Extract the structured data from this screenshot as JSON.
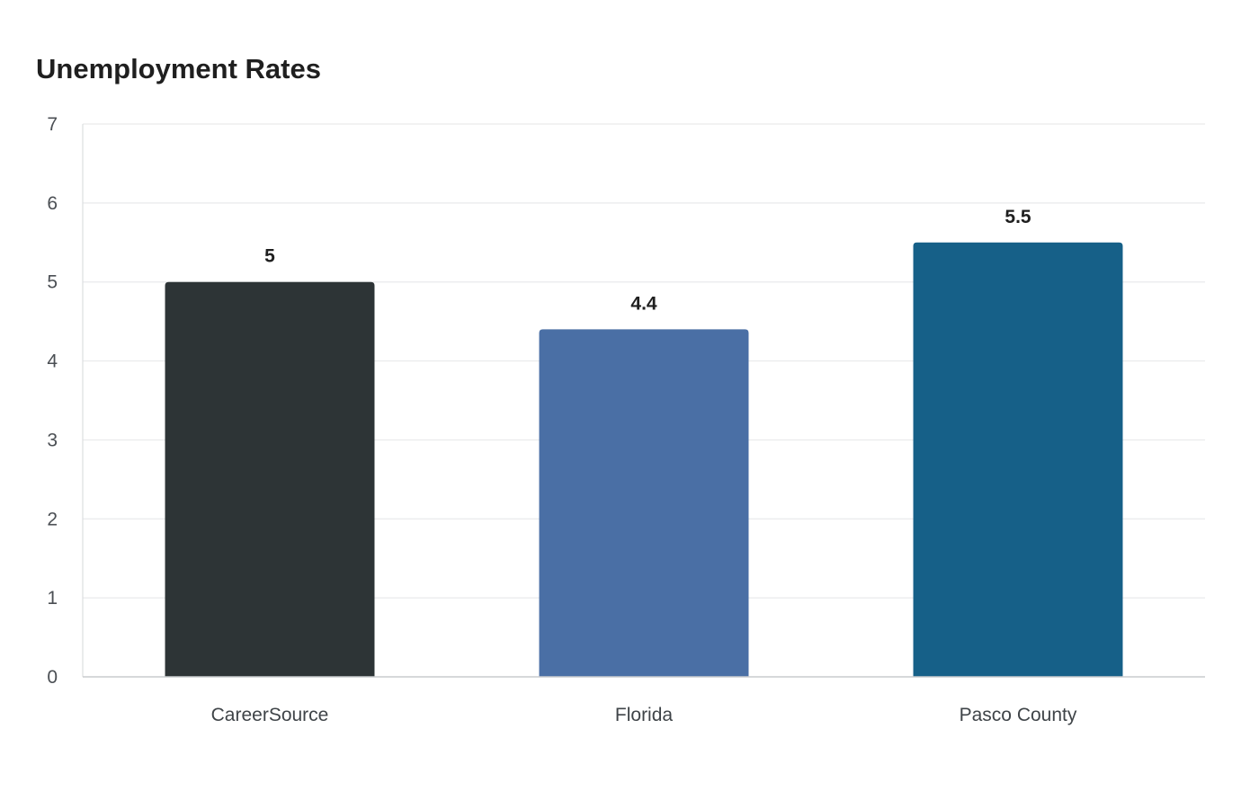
{
  "chart_data": {
    "type": "bar",
    "title": "Unemployment Rates",
    "xlabel": "",
    "ylabel": "",
    "categories": [
      "CareerSource",
      "Florida",
      "Pasco County"
    ],
    "values": [
      5,
      4.4,
      5.5
    ],
    "value_labels": [
      "5",
      "4.4",
      "5.5"
    ],
    "colors": [
      "#2d3436",
      "#4a6fa5",
      "#166088"
    ],
    "ylim": [
      0,
      7
    ],
    "yticks": [
      "0",
      "1",
      "2",
      "3",
      "4",
      "5",
      "6",
      "7"
    ],
    "grid": true,
    "legend": "none"
  }
}
